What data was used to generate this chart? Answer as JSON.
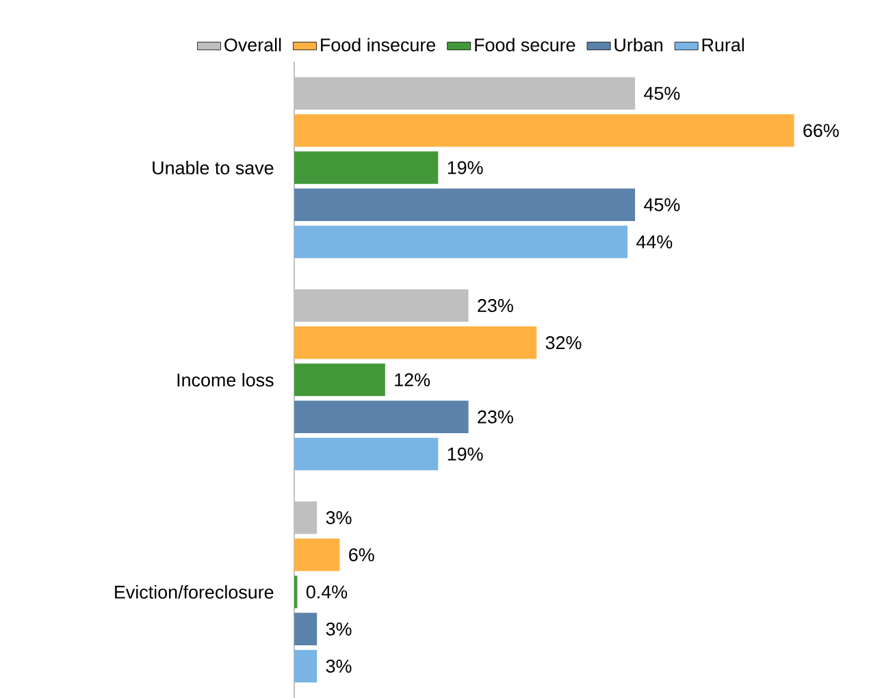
{
  "chart_data": {
    "type": "bar",
    "orientation": "horizontal",
    "legend": "top",
    "categories": [
      "Unable to save",
      "Income loss",
      "Eviction/foreclosure"
    ],
    "series": [
      {
        "name": "Overall",
        "color": "#bfbfbf",
        "values": [
          45,
          23,
          3
        ],
        "value_labels": [
          "45%",
          "23%",
          "3%"
        ]
      },
      {
        "name": "Food insecure",
        "color": "#ffb142",
        "values": [
          66,
          32,
          6
        ],
        "value_labels": [
          "66%",
          "32%",
          "6%"
        ]
      },
      {
        "name": "Food secure",
        "color": "#43983a",
        "values": [
          19,
          12,
          0.4
        ],
        "value_labels": [
          "19%",
          "12%",
          "0.4%"
        ]
      },
      {
        "name": "Urban",
        "color": "#5b82ab",
        "values": [
          45,
          23,
          3
        ],
        "value_labels": [
          "45%",
          "23%",
          "3%"
        ]
      },
      {
        "name": "Rural",
        "color": "#7ab4e5",
        "values": [
          44,
          19,
          3
        ],
        "value_labels": [
          "44%",
          "19%",
          "3%"
        ]
      }
    ]
  }
}
